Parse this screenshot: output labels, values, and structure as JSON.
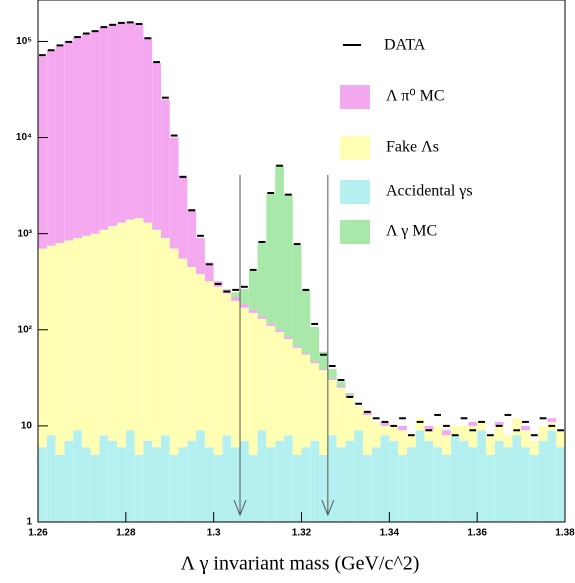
{
  "chart_data": {
    "type": "stacked-histogram",
    "x_label": "Λ γ   invariant mass (GeV/c^2)",
    "log_y": true,
    "xlim": [
      1.26,
      1.38
    ],
    "ylim": [
      1,
      270000
    ],
    "xticks": [
      1.26,
      1.28,
      1.3,
      1.32,
      1.34,
      1.36,
      1.38
    ],
    "yticks": [
      1,
      10,
      {
        "value": 100,
        "label": "10²"
      },
      {
        "value": 1000,
        "label": "10³"
      },
      {
        "value": 10000,
        "label": "10⁴"
      },
      {
        "value": 100000,
        "label": "10⁵"
      }
    ],
    "cuts": [
      1.306,
      1.326
    ],
    "bins": [
      1.26,
      1.262,
      1.264,
      1.266,
      1.268,
      1.27,
      1.272,
      1.274,
      1.276,
      1.278,
      1.28,
      1.282,
      1.284,
      1.286,
      1.288,
      1.29,
      1.292,
      1.294,
      1.296,
      1.298,
      1.3,
      1.302,
      1.304,
      1.306,
      1.308,
      1.31,
      1.312,
      1.314,
      1.316,
      1.318,
      1.32,
      1.322,
      1.324,
      1.326,
      1.328,
      1.33,
      1.332,
      1.334,
      1.336,
      1.338,
      1.34,
      1.342,
      1.344,
      1.346,
      1.348,
      1.35,
      1.352,
      1.354,
      1.356,
      1.358,
      1.36,
      1.362,
      1.364,
      1.366,
      1.368,
      1.37,
      1.372,
      1.374,
      1.376,
      1.378,
      1.38
    ],
    "series": [
      {
        "name": "Accidental  γs",
        "color": "#b4f0f0",
        "values": [
          6,
          8,
          5,
          7,
          9,
          6,
          5,
          8,
          7,
          6,
          9,
          5,
          7,
          6,
          8,
          5,
          6,
          7,
          9,
          6,
          5,
          8,
          6,
          7,
          5,
          9,
          6,
          7,
          8,
          5,
          6,
          7,
          5,
          8,
          6,
          7,
          9,
          5,
          6,
          8,
          7,
          5,
          6,
          9,
          7,
          6,
          5,
          8,
          7,
          6,
          9,
          5,
          7,
          6,
          8,
          6,
          5,
          7,
          9,
          6
        ]
      },
      {
        "name": "Fake  Λs",
        "color": "#ffffb4",
        "values": [
          694,
          742,
          795,
          843,
          891,
          944,
          995,
          1092,
          1193,
          1294,
          1391,
          1445,
          1293,
          1094,
          892,
          695,
          544,
          443,
          371,
          314,
          275,
          232,
          194,
          163,
          145,
          121,
          104,
          88,
          72,
          60,
          49,
          38,
          33,
          22,
          19,
          13,
          7,
          8,
          5,
          2,
          3,
          4,
          2,
          3,
          2,
          4,
          3,
          2,
          3,
          4,
          2,
          3,
          3,
          2,
          4,
          3,
          2,
          3,
          2,
          3
        ]
      },
      {
        "name": "Λ π⁰  MC",
        "color": "#f4a8f0",
        "values": [
          69300,
          79250,
          89200,
          99150,
          109100,
          119050,
          129000,
          138900,
          148800,
          153700,
          158600,
          148550,
          108700,
          58900,
          24100,
          9300,
          3450,
          1350,
          520,
          180,
          40,
          20,
          20,
          15,
          10,
          8,
          6,
          5,
          4,
          3,
          2,
          2,
          1,
          1,
          1,
          1,
          0,
          1,
          0,
          1,
          0,
          1,
          0,
          0,
          1,
          0,
          1,
          0,
          0,
          1,
          0,
          0,
          1,
          0,
          0,
          1,
          0,
          0,
          1,
          0
        ]
      },
      {
        "name": "Λ γ    MC",
        "color": "#a8e8a8",
        "values": [
          0,
          0,
          0,
          0,
          0,
          0,
          0,
          0,
          0,
          0,
          0,
          0,
          0,
          0,
          0,
          0,
          0,
          0,
          0,
          0,
          0,
          5,
          25,
          80,
          250,
          700,
          2500,
          5000,
          2500,
          700,
          200,
          60,
          20,
          8,
          3,
          1,
          0,
          0,
          0,
          0,
          0,
          0,
          0,
          0,
          0,
          0,
          0,
          0,
          0,
          0,
          0,
          0,
          0,
          0,
          0,
          0,
          0,
          0,
          0,
          0
        ]
      }
    ],
    "data": {
      "name": "DATA",
      "color": "#000000",
      "values": [
        72000,
        81000,
        91000,
        99000,
        111000,
        121000,
        128000,
        141000,
        149000,
        156000,
        158000,
        152000,
        108000,
        61000,
        26000,
        10500,
        3900,
        1750,
        950,
        480,
        300,
        250,
        260,
        280,
        420,
        820,
        2650,
        5100,
        2550,
        780,
        260,
        115,
        55,
        42,
        30,
        20,
        17,
        14,
        12,
        11,
        10,
        12,
        8,
        11,
        9,
        13,
        10,
        8,
        12,
        9,
        11,
        8,
        10,
        13,
        9,
        11,
        8,
        12,
        10,
        9
      ]
    }
  }
}
